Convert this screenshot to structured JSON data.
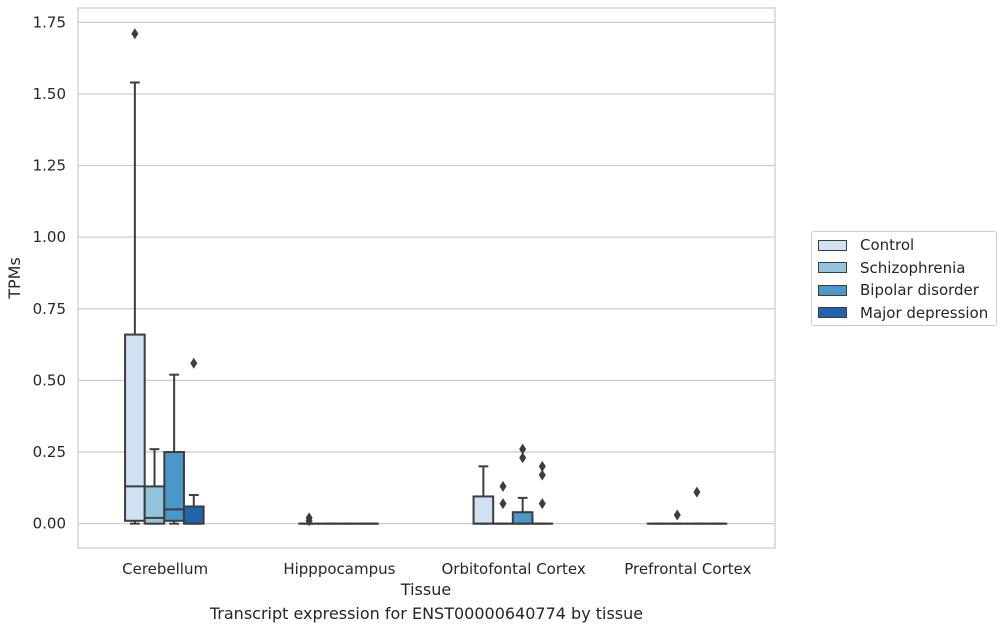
{
  "caption": "Transcript expression for ENST00000640774 by tissue",
  "chart_data": {
    "type": "boxplot",
    "xlabel": "Tissue",
    "ylabel": "TPMs",
    "ylim": [
      -0.085,
      1.8
    ],
    "yticks": [
      0.0,
      0.25,
      0.5,
      0.75,
      1.0,
      1.25,
      1.5,
      1.75
    ],
    "ytick_labels": [
      "0.00",
      "0.25",
      "0.50",
      "0.75",
      "1.00",
      "1.25",
      "1.50",
      "1.75"
    ],
    "grid": "horizontal",
    "legend_position": "right",
    "categories": [
      "Cerebellum",
      "Hipppocampus",
      "Orbitofontal Cortex",
      "Prefrontal Cortex"
    ],
    "series": [
      {
        "name": "Control",
        "color": "#cfe1f2",
        "boxes": [
          {
            "whislo": 0.0,
            "q1": 0.01,
            "med": 0.13,
            "q3": 0.66,
            "whishi": 1.54,
            "fliers": [
              1.71
            ]
          },
          {
            "whislo": 0.0,
            "q1": 0.0,
            "med": 0.0,
            "q3": 0.0,
            "whishi": 0.0,
            "fliers": [
              0.02,
              0.01
            ]
          },
          {
            "whislo": 0.0,
            "q1": 0.0,
            "med": 0.0,
            "q3": 0.095,
            "whishi": 0.2,
            "fliers": []
          },
          {
            "whislo": 0.0,
            "q1": 0.0,
            "med": 0.0,
            "q3": 0.0,
            "whishi": 0.0,
            "fliers": []
          }
        ]
      },
      {
        "name": "Schizophrenia",
        "color": "#93c4de",
        "boxes": [
          {
            "whislo": 0.0,
            "q1": 0.0,
            "med": 0.02,
            "q3": 0.13,
            "whishi": 0.26,
            "fliers": []
          },
          {
            "whislo": 0.0,
            "q1": 0.0,
            "med": 0.0,
            "q3": 0.0,
            "whishi": 0.0,
            "fliers": []
          },
          {
            "whislo": 0.0,
            "q1": 0.0,
            "med": 0.0,
            "q3": 0.0,
            "whishi": 0.0,
            "fliers": [
              0.13,
              0.07
            ]
          },
          {
            "whislo": 0.0,
            "q1": 0.0,
            "med": 0.0,
            "q3": 0.0,
            "whishi": 0.0,
            "fliers": [
              0.03
            ]
          }
        ]
      },
      {
        "name": "Bipolar disorder",
        "color": "#4a98c9",
        "boxes": [
          {
            "whislo": 0.0,
            "q1": 0.01,
            "med": 0.05,
            "q3": 0.25,
            "whishi": 0.52,
            "fliers": []
          },
          {
            "whislo": 0.0,
            "q1": 0.0,
            "med": 0.0,
            "q3": 0.0,
            "whishi": 0.0,
            "fliers": []
          },
          {
            "whislo": 0.0,
            "q1": 0.0,
            "med": 0.0,
            "q3": 0.04,
            "whishi": 0.09,
            "fliers": [
              0.26,
              0.23
            ]
          },
          {
            "whislo": 0.0,
            "q1": 0.0,
            "med": 0.0,
            "q3": 0.0,
            "whishi": 0.0,
            "fliers": [
              0.11
            ]
          }
        ]
      },
      {
        "name": "Major depression",
        "color": "#2164ab",
        "boxes": [
          {
            "whislo": 0.0,
            "q1": 0.0,
            "med": 0.0,
            "q3": 0.06,
            "whishi": 0.1,
            "fliers": [
              0.56
            ]
          },
          {
            "whislo": 0.0,
            "q1": 0.0,
            "med": 0.0,
            "q3": 0.0,
            "whishi": 0.0,
            "fliers": []
          },
          {
            "whislo": 0.0,
            "q1": 0.0,
            "med": 0.0,
            "q3": 0.0,
            "whishi": 0.0,
            "fliers": [
              0.2,
              0.17,
              0.07
            ]
          },
          {
            "whislo": 0.0,
            "q1": 0.0,
            "med": 0.0,
            "q3": 0.0,
            "whishi": 0.0,
            "fliers": []
          }
        ]
      }
    ]
  }
}
